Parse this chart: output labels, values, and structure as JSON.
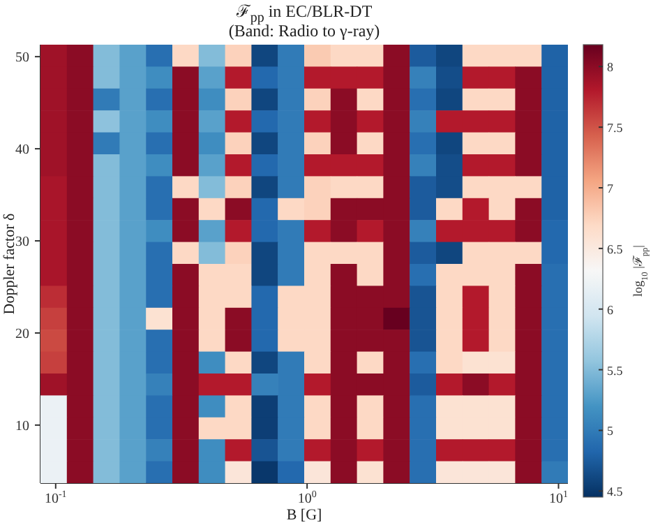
{
  "chart_data": {
    "type": "heatmap",
    "title": "ℱ$_{pp}$ in EC/BLR-DT",
    "subtitle": "(Band: Radio to γ-ray)",
    "xlabel": "B [G]",
    "ylabel": "Doppler factor δ",
    "clabel": "log$_{10}$ |ℱ$_{pp}$|",
    "log": "x",
    "xlim": [
      0.087,
      10.9
    ],
    "xticks": [
      {
        "value": 0.1,
        "label": "10$^{-1}$"
      },
      {
        "value": 1,
        "label": "10$^{0}$"
      },
      {
        "value": 10,
        "label": "10$^{1}$"
      }
    ],
    "ylim": [
      3.7,
      51.3
    ],
    "yticks": [
      10,
      20,
      30,
      40,
      50
    ],
    "clim": [
      4.45,
      8.18
    ],
    "cticks": [
      4.5,
      5.0,
      5.5,
      6.0,
      6.5,
      7.0,
      7.5,
      8.0
    ],
    "cells": [
      [
        7.9,
        8.0,
        5.5,
        5.3,
        4.9,
        6.7,
        5.5,
        6.75,
        4.6,
        5.0,
        6.8,
        6.7,
        6.7,
        8.0,
        4.75,
        4.6,
        6.7,
        6.7,
        6.7,
        4.8
      ],
      [
        7.9,
        8.0,
        5.5,
        5.3,
        5.15,
        8.0,
        5.3,
        7.8,
        4.85,
        5.0,
        7.8,
        7.8,
        7.8,
        8.0,
        5.05,
        4.65,
        7.8,
        7.8,
        8.0,
        4.8
      ],
      [
        7.9,
        8.0,
        5.0,
        5.3,
        4.9,
        8.0,
        5.15,
        6.75,
        4.6,
        5.0,
        6.75,
        8.0,
        6.7,
        8.0,
        4.9,
        4.6,
        6.7,
        6.7,
        8.0,
        4.8
      ],
      [
        7.9,
        8.0,
        5.55,
        5.3,
        5.15,
        8.0,
        5.3,
        7.8,
        4.85,
        5.0,
        7.8,
        8.0,
        7.8,
        8.0,
        5.05,
        7.8,
        7.8,
        7.8,
        8.0,
        4.8
      ],
      [
        7.9,
        8.0,
        5.0,
        5.3,
        4.9,
        8.0,
        5.15,
        6.75,
        4.6,
        5.0,
        6.75,
        8.0,
        6.7,
        8.0,
        4.9,
        4.6,
        6.7,
        6.7,
        8.0,
        4.8
      ],
      [
        7.9,
        8.0,
        5.5,
        5.3,
        5.15,
        8.0,
        5.3,
        7.8,
        4.85,
        5.0,
        7.8,
        7.8,
        7.8,
        8.0,
        5.05,
        4.65,
        7.8,
        7.8,
        8.0,
        4.8
      ],
      [
        7.85,
        8.0,
        5.5,
        5.3,
        4.9,
        6.7,
        5.5,
        6.75,
        4.6,
        5.0,
        6.75,
        6.7,
        6.7,
        8.0,
        4.75,
        4.65,
        6.7,
        6.7,
        6.7,
        4.8
      ],
      [
        7.85,
        8.0,
        5.5,
        5.3,
        4.9,
        8.0,
        6.7,
        8.0,
        4.85,
        6.7,
        6.75,
        8.0,
        8.0,
        8.0,
        4.75,
        6.7,
        7.8,
        6.7,
        8.0,
        4.8
      ],
      [
        7.85,
        8.0,
        5.5,
        5.3,
        5.15,
        8.0,
        5.3,
        7.8,
        4.85,
        5.0,
        7.8,
        8.0,
        7.8,
        8.0,
        5.05,
        7.8,
        7.8,
        7.8,
        8.0,
        4.85
      ],
      [
        7.85,
        8.0,
        5.5,
        5.3,
        4.9,
        6.7,
        5.5,
        6.75,
        4.6,
        5.0,
        6.7,
        6.7,
        6.7,
        8.0,
        4.75,
        4.6,
        6.7,
        6.7,
        6.7,
        4.85
      ],
      [
        7.85,
        8.0,
        5.5,
        5.3,
        4.9,
        8.0,
        6.7,
        6.7,
        4.6,
        5.0,
        6.7,
        8.0,
        6.7,
        8.0,
        4.9,
        6.7,
        6.7,
        6.7,
        8.0,
        4.9
      ],
      [
        7.7,
        8.0,
        5.5,
        5.3,
        4.9,
        8.0,
        6.7,
        6.7,
        4.85,
        6.7,
        6.7,
        8.0,
        8.0,
        8.0,
        4.7,
        6.7,
        7.8,
        6.7,
        8.0,
        4.9
      ],
      [
        7.6,
        8.0,
        5.5,
        5.3,
        6.6,
        8.0,
        6.7,
        8.0,
        4.85,
        6.7,
        6.7,
        8.0,
        8.0,
        8.18,
        4.7,
        6.7,
        7.8,
        6.7,
        8.0,
        4.9
      ],
      [
        7.55,
        8.0,
        5.5,
        5.3,
        4.9,
        8.0,
        6.7,
        8.0,
        4.85,
        6.7,
        6.7,
        8.0,
        8.0,
        8.0,
        4.7,
        6.7,
        7.8,
        6.7,
        8.0,
        4.9
      ],
      [
        7.6,
        8.0,
        5.5,
        5.3,
        4.9,
        8.0,
        5.15,
        6.7,
        4.6,
        5.0,
        6.7,
        8.0,
        6.7,
        8.0,
        4.9,
        6.7,
        6.6,
        6.6,
        8.0,
        4.9
      ],
      [
        7.9,
        8.0,
        5.5,
        5.3,
        5.05,
        8.0,
        7.8,
        7.8,
        5.05,
        5.0,
        7.8,
        8.0,
        8.0,
        8.0,
        4.75,
        7.8,
        8.0,
        7.8,
        8.0,
        4.9
      ],
      [
        6.2,
        8.0,
        5.5,
        5.3,
        4.9,
        8.0,
        5.15,
        6.7,
        4.55,
        5.0,
        6.7,
        8.0,
        6.7,
        8.0,
        4.9,
        6.6,
        6.6,
        6.6,
        8.0,
        4.9
      ],
      [
        6.2,
        8.0,
        5.5,
        5.3,
        4.9,
        8.0,
        6.7,
        6.7,
        4.55,
        5.0,
        6.7,
        8.0,
        6.7,
        8.0,
        4.9,
        6.6,
        6.6,
        6.6,
        8.0,
        4.9
      ],
      [
        6.2,
        8.0,
        5.5,
        5.3,
        5.05,
        8.0,
        5.15,
        7.8,
        4.7,
        5.0,
        7.8,
        8.0,
        7.8,
        8.0,
        4.9,
        7.8,
        7.8,
        7.8,
        8.0,
        4.9
      ],
      [
        6.2,
        8.0,
        5.5,
        5.3,
        4.9,
        8.0,
        5.15,
        6.55,
        4.5,
        4.85,
        6.55,
        8.0,
        6.6,
        8.0,
        4.9,
        6.55,
        6.55,
        6.55,
        8.0,
        5.0
      ]
    ]
  }
}
